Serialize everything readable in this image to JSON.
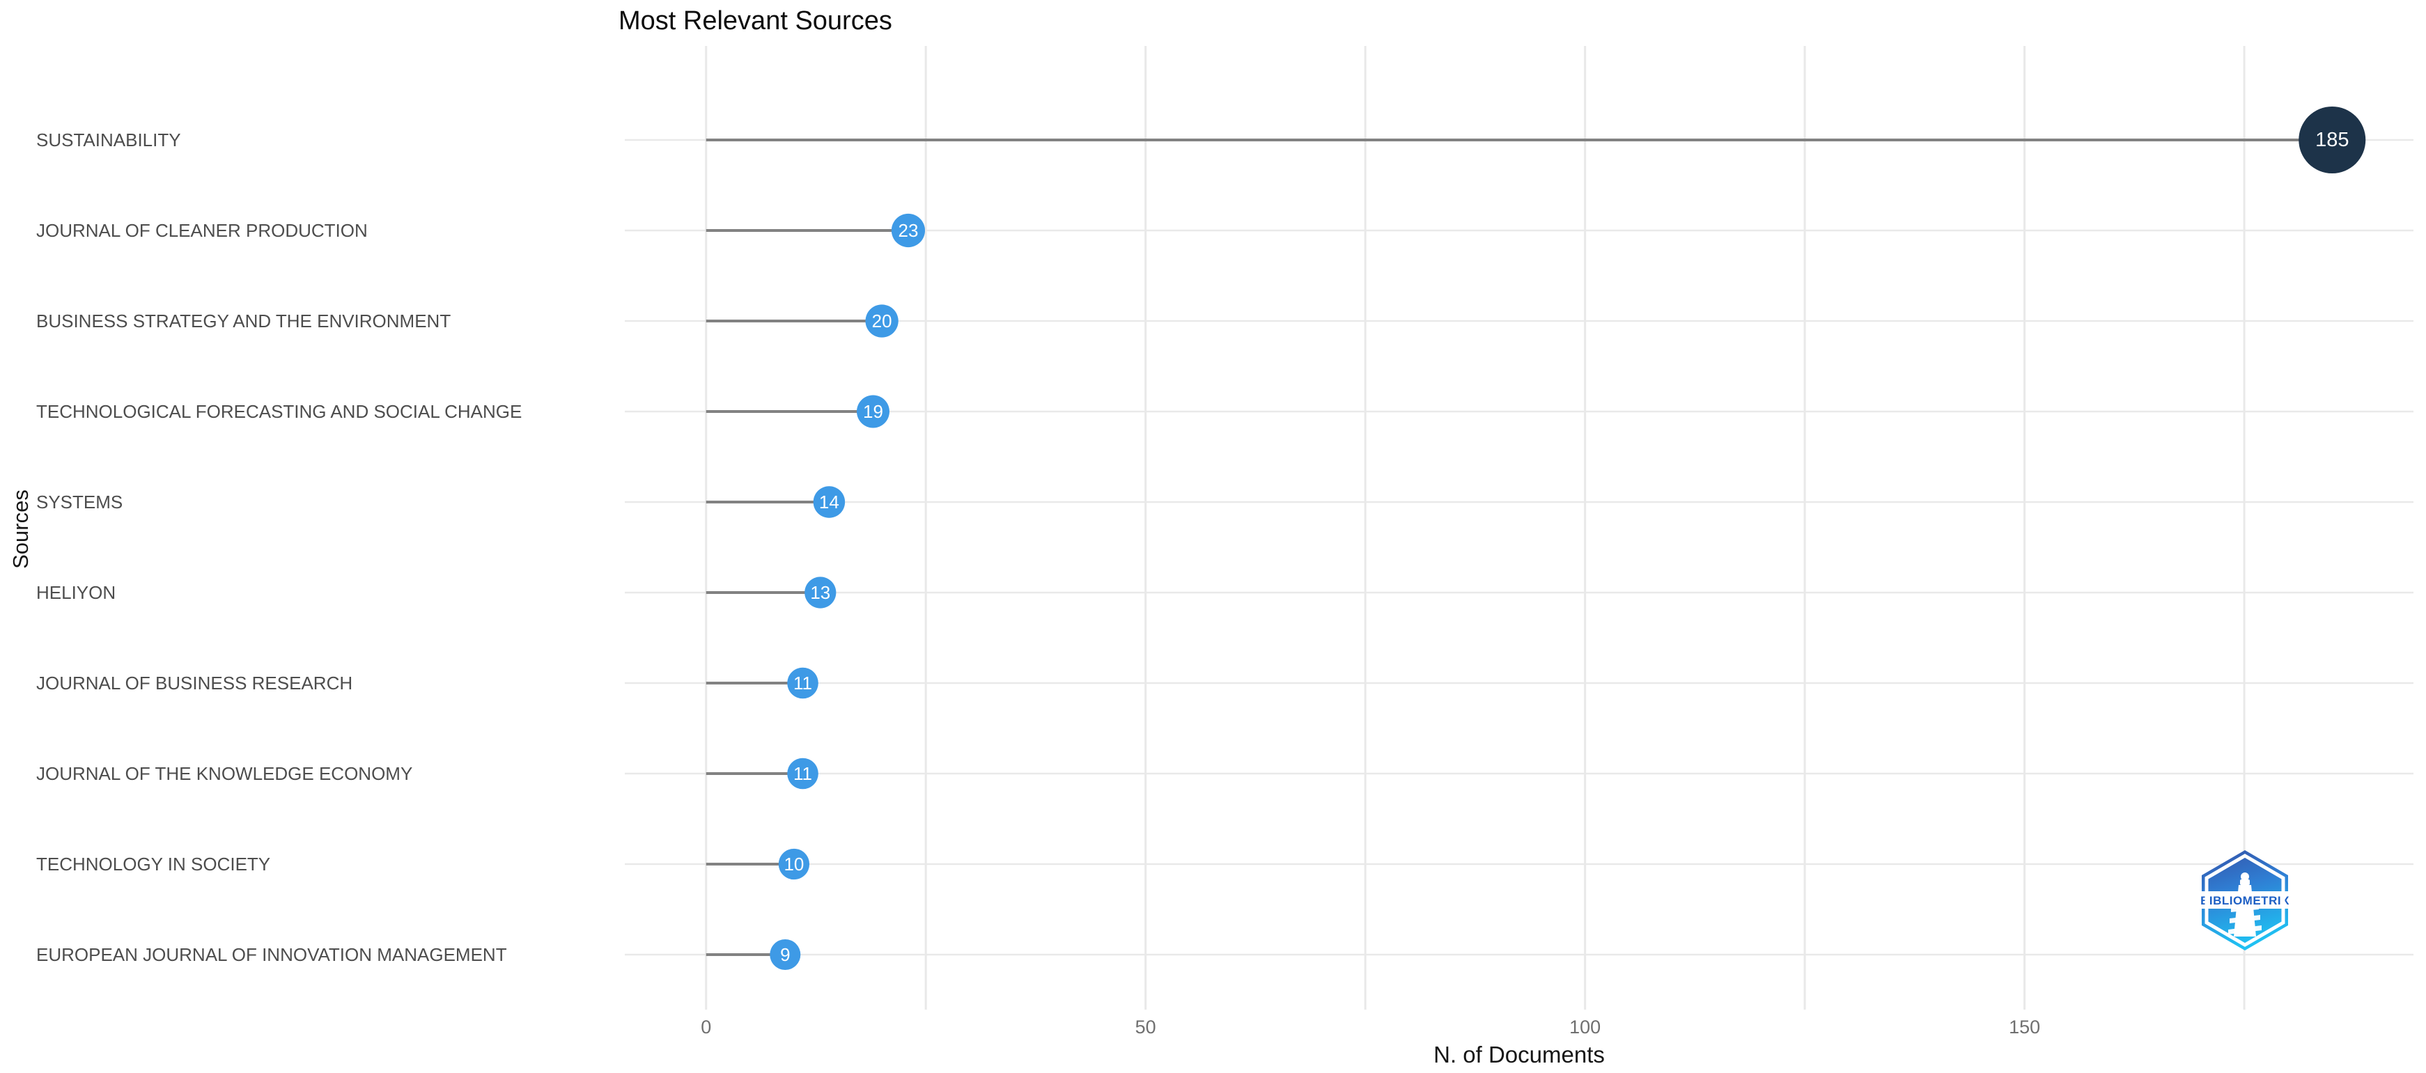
{
  "chart_data": {
    "type": "lollipop",
    "title": "Most Relevant Sources",
    "xlabel": "N. of Documents",
    "ylabel": "Sources",
    "categories": [
      "SUSTAINABILITY",
      "JOURNAL OF CLEANER PRODUCTION",
      "BUSINESS STRATEGY AND THE ENVIRONMENT",
      "TECHNOLOGICAL FORECASTING AND SOCIAL CHANGE",
      "SYSTEMS",
      "HELIYON",
      "JOURNAL OF BUSINESS RESEARCH",
      "JOURNAL OF THE KNOWLEDGE ECONOMY",
      "TECHNOLOGY IN SOCIETY",
      "EUROPEAN JOURNAL OF INNOVATION MANAGEMENT"
    ],
    "values": [
      185,
      23,
      20,
      19,
      14,
      13,
      11,
      11,
      10,
      9
    ],
    "x_ticks": [
      0,
      50,
      100,
      150
    ],
    "x_minor_gridlines": [
      25,
      75,
      125,
      175
    ],
    "xlim": [
      -9.25,
      194.25
    ],
    "grid": "on",
    "legend": "none",
    "colors": {
      "dot_default": "#3e9ae6",
      "dot_max": "#1d3349",
      "dot_label": "#ffffff",
      "stem": "#828282",
      "grid": "#e9e9e9",
      "tick_text": "#707070",
      "category_text": "#4d4d4d",
      "title_text": "#0d0d0d"
    }
  },
  "logo": {
    "name": "bibliometrix",
    "label": "BIBLIOMETRIX",
    "hex_top": "#3452a8",
    "hex_mid": "#2f7fd4",
    "hex_bottom": "#1fc0f2",
    "band_text_color": "#1d5fc4"
  }
}
